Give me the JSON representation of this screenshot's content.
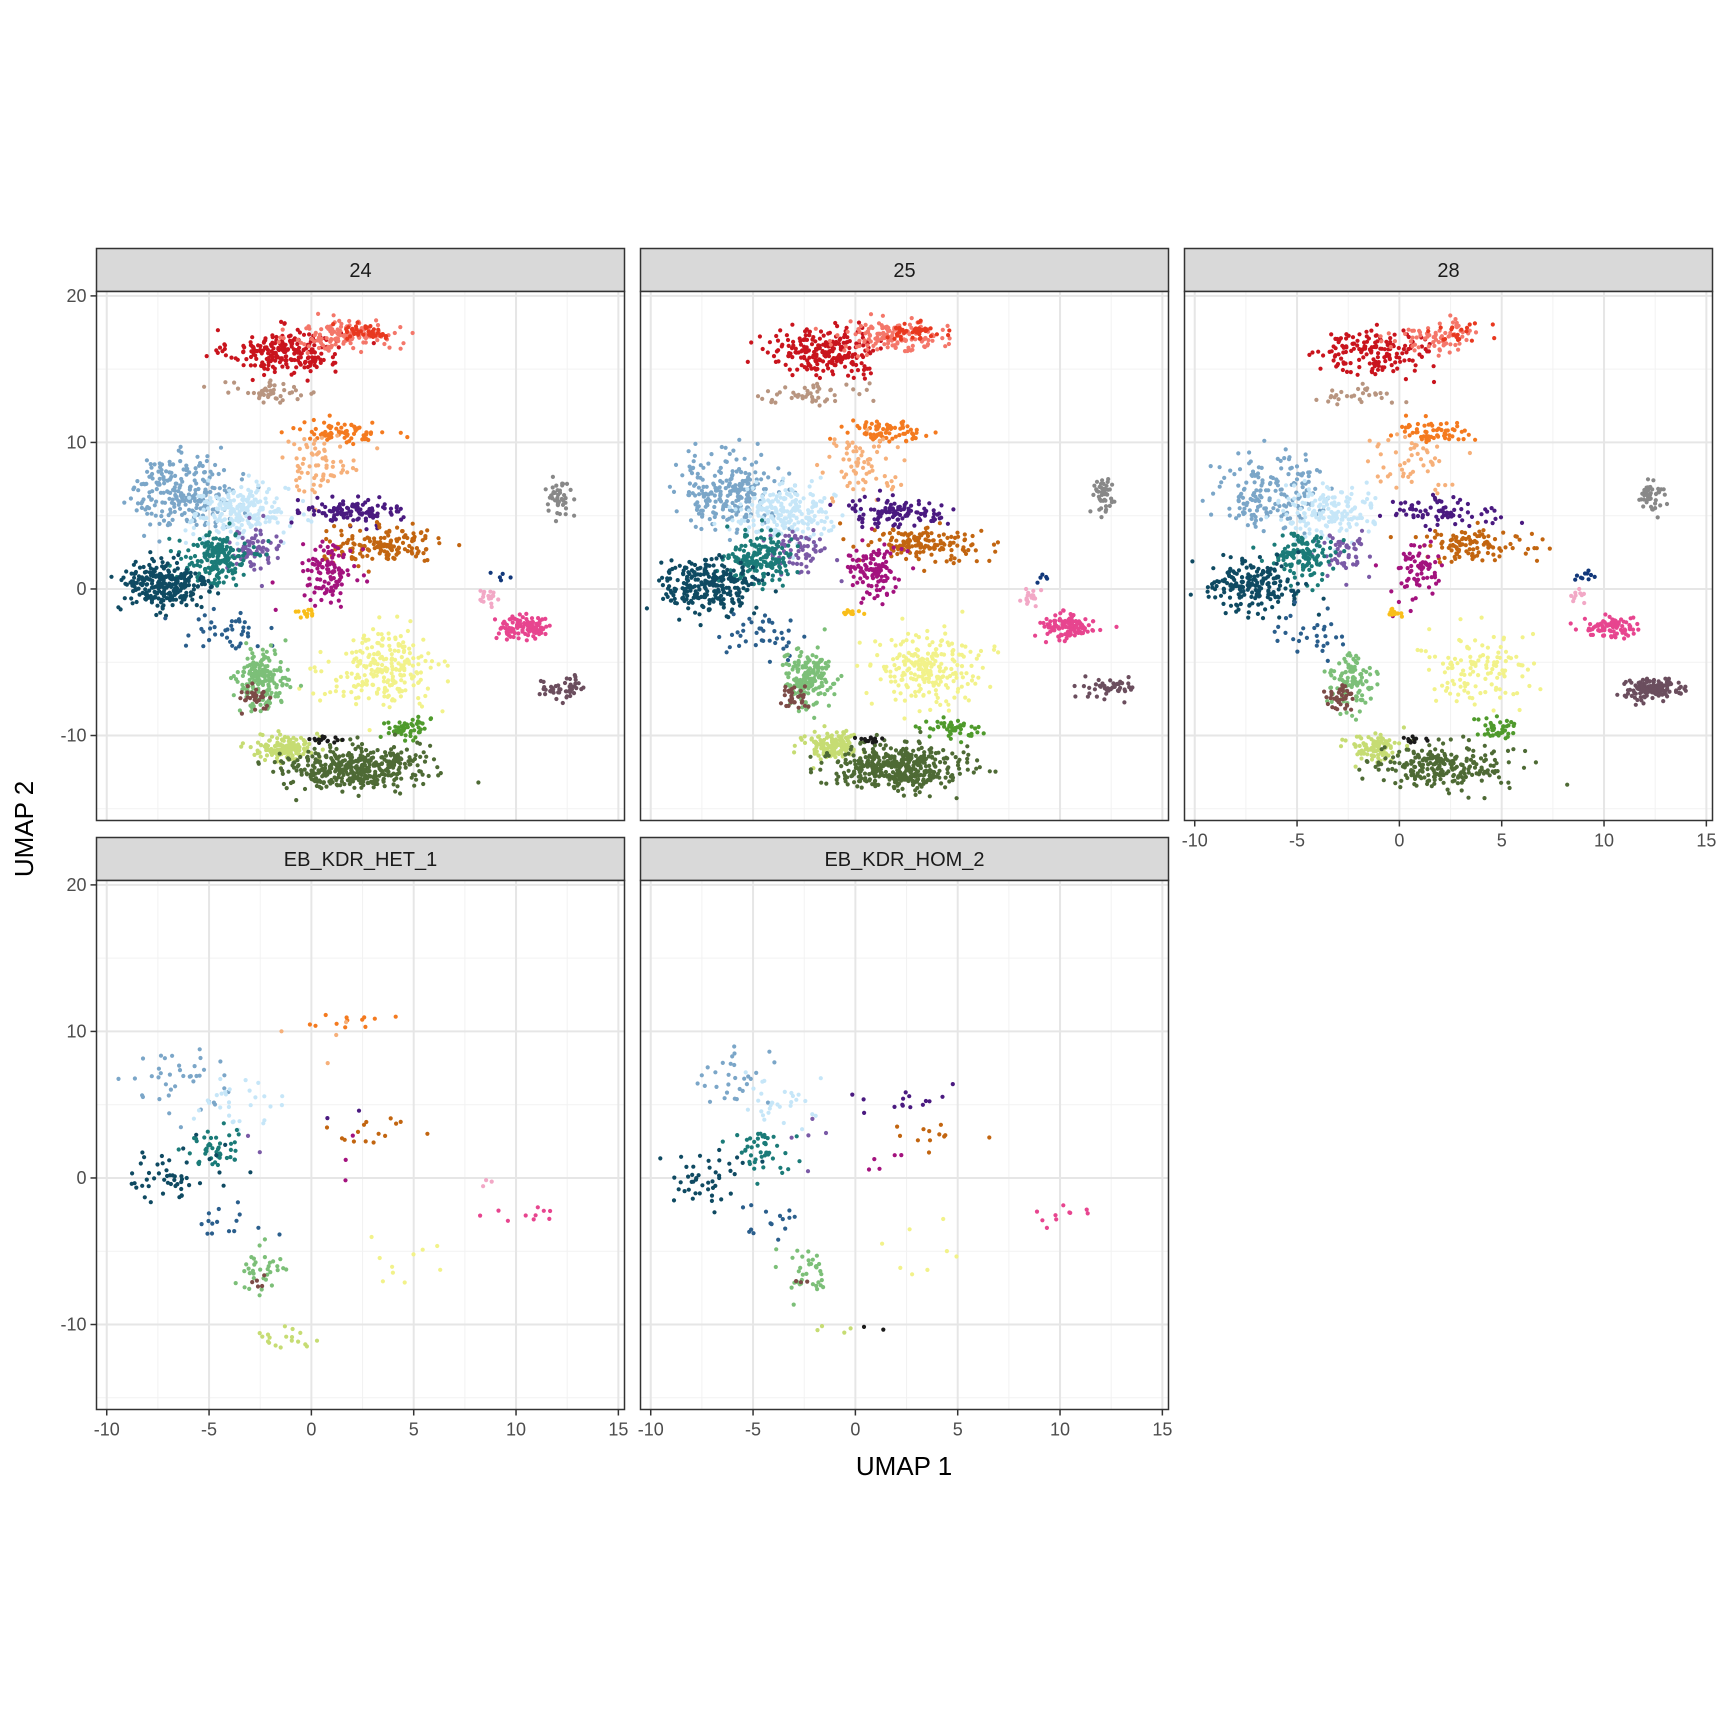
{
  "chart_data": {
    "type": "scatter",
    "facet_layout": "3 columns x 2 rows, shared axes",
    "xlabel": "UMAP 1",
    "ylabel": "UMAP 2",
    "xlim": [
      -10.5,
      15.3
    ],
    "ylim": [
      -15.8,
      20.3
    ],
    "x_ticks": [
      -10,
      -5,
      0,
      5,
      10,
      15
    ],
    "y_ticks": [
      -10,
      0,
      10,
      20
    ],
    "x_tick_labels": [
      "-10",
      "-5",
      "0",
      "5",
      "10",
      "15"
    ],
    "y_tick_labels": [
      "-10",
      "0",
      "10",
      "20"
    ],
    "grid": true,
    "legend": "none",
    "panels": [
      "24",
      "25",
      "28",
      "EB_KDR_HET_1",
      "EB_KDR_HOM_2"
    ],
    "clusters": [
      {
        "color": "#c9141d",
        "center": [
          -1.3,
          16.2
        ],
        "spread": [
          1.8,
          1.0
        ]
      },
      {
        "color": "#f4776a",
        "center": [
          1.7,
          17.3
        ],
        "spread": [
          1.7,
          0.7
        ]
      },
      {
        "color": "#e8381f",
        "center": [
          2.8,
          17.6
        ],
        "spread": [
          0.9,
          0.4
        ]
      },
      {
        "color": "#b89580",
        "center": [
          -2.0,
          13.4
        ],
        "spread": [
          1.6,
          0.5
        ]
      },
      {
        "color": "#f47a1f",
        "center": [
          1.6,
          10.7
        ],
        "spread": [
          1.4,
          0.5
        ]
      },
      {
        "color": "#f6b07a",
        "center": [
          0.4,
          8.6
        ],
        "spread": [
          1.3,
          1.3
        ]
      },
      {
        "color": "#7ba6c8",
        "center": [
          -6.2,
          6.6
        ],
        "spread": [
          1.7,
          1.6
        ]
      },
      {
        "color": "#c6e6f8",
        "center": [
          -3.5,
          5.2
        ],
        "spread": [
          1.6,
          1.2
        ]
      },
      {
        "color": "#4a1a80",
        "center": [
          2.0,
          5.3
        ],
        "spread": [
          1.6,
          0.6
        ]
      },
      {
        "color": "#c26510",
        "center": [
          3.5,
          3.0
        ],
        "spread": [
          1.9,
          0.8
        ]
      },
      {
        "color": "#7a5aa6",
        "center": [
          -2.8,
          2.5
        ],
        "spread": [
          0.9,
          1.0
        ]
      },
      {
        "color": "#a3127e",
        "center": [
          0.9,
          1.3
        ],
        "spread": [
          0.9,
          1.3
        ]
      },
      {
        "color": "#1b7b78",
        "center": [
          -4.7,
          2.0
        ],
        "spread": [
          1.1,
          1.2
        ]
      },
      {
        "color": "#0f4a62",
        "center": [
          -7.2,
          0.2
        ],
        "spread": [
          1.5,
          1.2
        ]
      },
      {
        "color": "#2a5e8c",
        "center": [
          -4.5,
          -3.0
        ],
        "spread": [
          1.3,
          1.0
        ]
      },
      {
        "color": "#f9be1a",
        "center": [
          -0.2,
          -1.6
        ],
        "spread": [
          0.3,
          0.2
        ]
      },
      {
        "color": "#f2f28a",
        "center": [
          3.5,
          -5.5
        ],
        "spread": [
          1.8,
          1.7
        ]
      },
      {
        "color": "#7cbf78",
        "center": [
          -2.4,
          -6.2
        ],
        "spread": [
          0.8,
          1.3
        ]
      },
      {
        "color": "#7c4b47",
        "center": [
          -2.9,
          -7.4
        ],
        "spread": [
          0.5,
          0.6
        ]
      },
      {
        "color": "#c6dc73",
        "center": [
          -1.2,
          -10.8
        ],
        "spread": [
          0.9,
          0.6
        ]
      },
      {
        "color": "#4f9a2c",
        "center": [
          4.7,
          -9.5
        ],
        "spread": [
          0.8,
          0.5
        ]
      },
      {
        "color": "#4e6a35",
        "center": [
          2.0,
          -12.2
        ],
        "spread": [
          2.2,
          1.0
        ]
      },
      {
        "color": "#1a1a1a",
        "center": [
          0.7,
          -10.3
        ],
        "spread": [
          0.5,
          0.2
        ]
      },
      {
        "color": "#e7458f",
        "center": [
          10.3,
          -2.6
        ],
        "spread": [
          0.9,
          0.5
        ]
      },
      {
        "color": "#f2a8c6",
        "center": [
          8.6,
          -0.5
        ],
        "spread": [
          0.3,
          0.4
        ]
      },
      {
        "color": "#12387a",
        "center": [
          9.2,
          0.8
        ],
        "spread": [
          0.3,
          0.2
        ]
      },
      {
        "color": "#888888",
        "center": [
          12.2,
          6.3
        ],
        "spread": [
          0.4,
          0.8
        ]
      },
      {
        "color": "#6b4e5e",
        "center": [
          12.3,
          -6.8
        ],
        "spread": [
          0.9,
          0.5
        ]
      }
    ],
    "panel_counts": {
      "24": [
        240,
        140,
        40,
        45,
        75,
        70,
        240,
        220,
        110,
        150,
        70,
        110,
        180,
        260,
        40,
        12,
        230,
        180,
        30,
        140,
        50,
        420,
        15,
        110,
        20,
        5,
        45,
        45
      ],
      "25": [
        240,
        140,
        40,
        45,
        75,
        70,
        240,
        220,
        110,
        150,
        70,
        110,
        180,
        260,
        40,
        12,
        230,
        180,
        30,
        140,
        50,
        420,
        15,
        110,
        20,
        5,
        45,
        45
      ],
      "28": [
        160,
        70,
        20,
        30,
        60,
        50,
        180,
        160,
        80,
        110,
        50,
        70,
        130,
        200,
        30,
        12,
        120,
        110,
        40,
        100,
        40,
        240,
        12,
        90,
        10,
        10,
        45,
        160
      ],
      "EB_KDR_HET_1": [
        0,
        0,
        0,
        0,
        12,
        4,
        40,
        30,
        2,
        15,
        2,
        3,
        45,
        50,
        15,
        0,
        10,
        35,
        5,
        18,
        0,
        0,
        0,
        10,
        3,
        0,
        0,
        0
      ],
      "EB_KDR_HOM_2": [
        0,
        0,
        0,
        0,
        0,
        0,
        30,
        30,
        15,
        12,
        5,
        5,
        45,
        45,
        15,
        0,
        8,
        35,
        3,
        4,
        0,
        0,
        2,
        10,
        0,
        0,
        0,
        0
      ]
    }
  },
  "strips": {
    "p24": "24",
    "p25": "25",
    "p28": "28",
    "pHET": "EB_KDR_HET_1",
    "pHOM": "EB_KDR_HOM_2"
  },
  "axes": {
    "xlabel": "UMAP 1",
    "ylabel": "UMAP 2"
  }
}
